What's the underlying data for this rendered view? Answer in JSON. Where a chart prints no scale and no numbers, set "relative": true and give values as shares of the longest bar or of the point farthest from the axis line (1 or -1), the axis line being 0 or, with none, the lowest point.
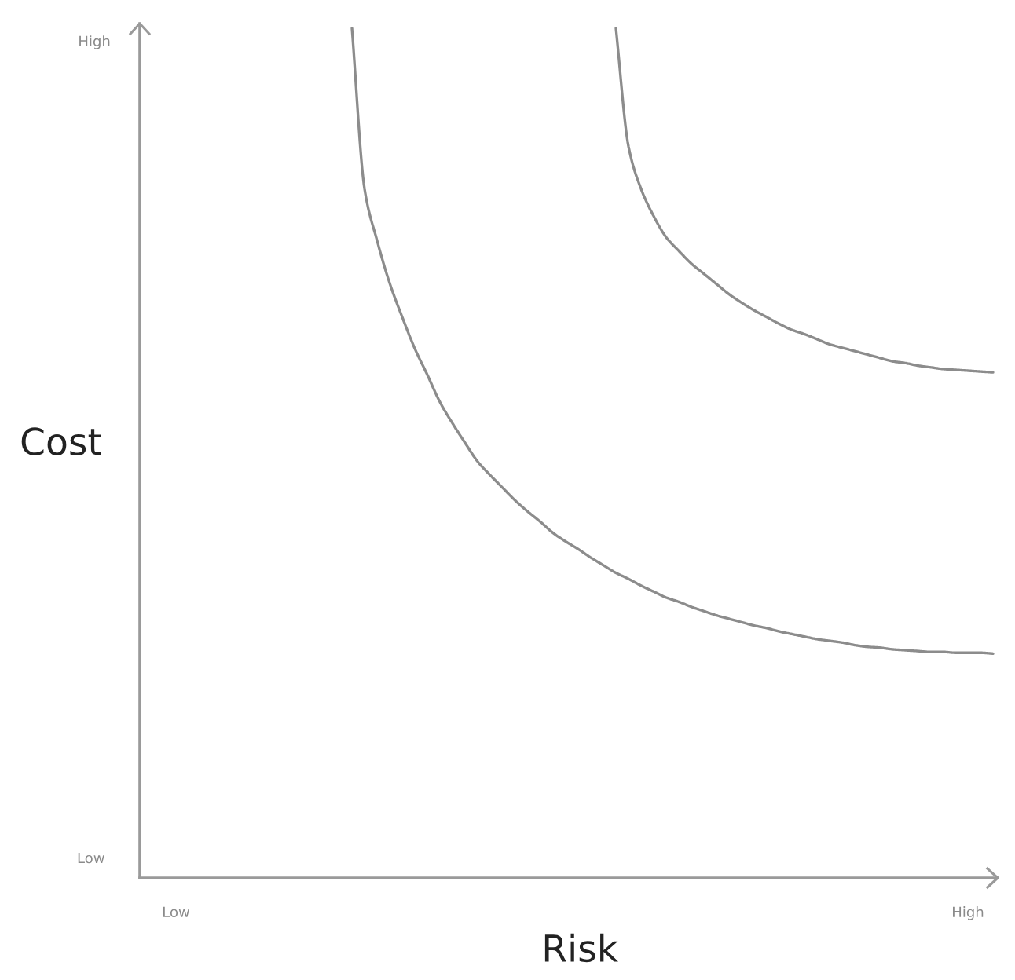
{
  "chart_data": {
    "type": "line",
    "xlabel": "Risk",
    "ylabel": "Cost",
    "relative": true,
    "annotations": [
      "High",
      "Low"
    ],
    "marker": "none",
    "line_style": "solid",
    "categories": [
      "Low",
      null,
      null,
      null,
      null,
      null,
      null,
      null,
      null,
      null,
      null,
      null,
      null,
      null,
      null,
      null,
      null,
      null,
      null,
      null,
      null,
      null,
      null,
      null,
      null,
      null,
      null,
      null,
      null,
      null,
      null,
      null,
      null,
      null,
      null,
      null,
      null,
      null,
      null,
      null,
      null,
      null,
      null,
      null,
      null,
      null,
      null,
      null,
      null,
      null,
      null,
      null,
      null,
      null,
      null,
      null,
      null,
      null,
      null,
      null,
      null,
      null,
      null,
      "High",
      null,
      null
    ],
    "series": [
      {
        "color": "#8c8c8c",
        "values": [
          null,
          null,
          null,
          null,
          null,
          null,
          null,
          null,
          null,
          null,
          null,
          null,
          null,
          null,
          1.0,
          0.811,
          0.75,
          0.7,
          0.66,
          0.623,
          0.592,
          0.56,
          0.535,
          0.512,
          0.49,
          0.474,
          0.459,
          0.444,
          0.431,
          0.419,
          0.406,
          0.396,
          0.387,
          0.377,
          0.368,
          0.359,
          0.352,
          0.344,
          0.337,
          0.33,
          0.325,
          0.319,
          0.314,
          0.309,
          0.305,
          0.301,
          0.297,
          0.294,
          0.29,
          0.287,
          0.284,
          0.281,
          0.279,
          0.277,
          0.274,
          0.272,
          0.271,
          0.269,
          0.268,
          0.267,
          0.266,
          0.266,
          0.265,
          0.265,
          0.265,
          0.264
        ]
      },
      {
        "color": "#8c8c8c",
        "values": [
          null,
          null,
          null,
          null,
          null,
          null,
          null,
          null,
          null,
          null,
          null,
          null,
          null,
          null,
          null,
          null,
          null,
          null,
          null,
          null,
          null,
          null,
          null,
          null,
          null,
          null,
          null,
          null,
          null,
          null,
          null,
          null,
          null,
          null,
          null,
          1.0,
          0.861,
          0.811,
          0.779,
          0.754,
          0.738,
          0.723,
          0.711,
          0.699,
          0.687,
          0.677,
          0.668,
          0.66,
          0.652,
          0.645,
          0.64,
          0.634,
          0.628,
          0.624,
          0.62,
          0.616,
          0.612,
          0.608,
          0.606,
          0.603,
          0.601,
          0.599,
          0.598,
          0.597,
          0.596,
          0.595
        ]
      }
    ]
  }
}
